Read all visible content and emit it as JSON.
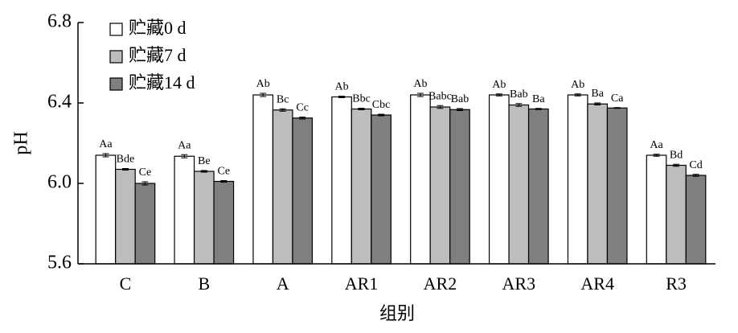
{
  "chart_data": {
    "type": "bar",
    "x_label": "组别",
    "y_label": "pH",
    "categories": [
      "C",
      "B",
      "A",
      "AR1",
      "AR2",
      "AR3",
      "AR4",
      "R3"
    ],
    "ylim": [
      5.6,
      6.8
    ],
    "yticks": [
      5.6,
      {
        "value": 6,
        "label": "6.0"
      },
      6.4,
      6.8
    ],
    "legend": "upper left",
    "series": [
      {
        "name": "贮藏0 d",
        "color": "#ffffff",
        "values": [
          6.14,
          6.135,
          6.44,
          6.43,
          6.44,
          6.44,
          6.44,
          6.14
        ],
        "errors": [
          0.008,
          0.008,
          0.008,
          0.004,
          0.008,
          0.005,
          0.005,
          0.005
        ],
        "significance": [
          "Aa",
          "Aa",
          "Ab",
          "Ab",
          "Ab",
          "Ab",
          "Ab",
          "Aa"
        ]
      },
      {
        "name": "贮藏7 d",
        "color": "#bdbdbd",
        "values": [
          6.07,
          6.06,
          6.365,
          6.37,
          6.38,
          6.39,
          6.395,
          6.09
        ],
        "errors": [
          0.004,
          0.004,
          0.006,
          0.004,
          0.007,
          0.007,
          0.005,
          0.005
        ],
        "significance": [
          "Bde",
          "Be",
          "Bc",
          "Bbc",
          "Babc",
          "Bab",
          "Ba",
          "Bd"
        ]
      },
      {
        "name": "贮藏14 d",
        "color": "#7f7f7f",
        "values": [
          6.0,
          6.01,
          6.325,
          6.34,
          6.367,
          6.37,
          6.375,
          6.04
        ],
        "errors": [
          0.008,
          0.004,
          0.005,
          0.004,
          0.005,
          0.003,
          0.002,
          0.005
        ],
        "significance": [
          "Ce",
          "Ce",
          "Cc",
          "Cbc",
          "Bab",
          "Ba",
          "Ca",
          "Cd"
        ]
      }
    ]
  }
}
